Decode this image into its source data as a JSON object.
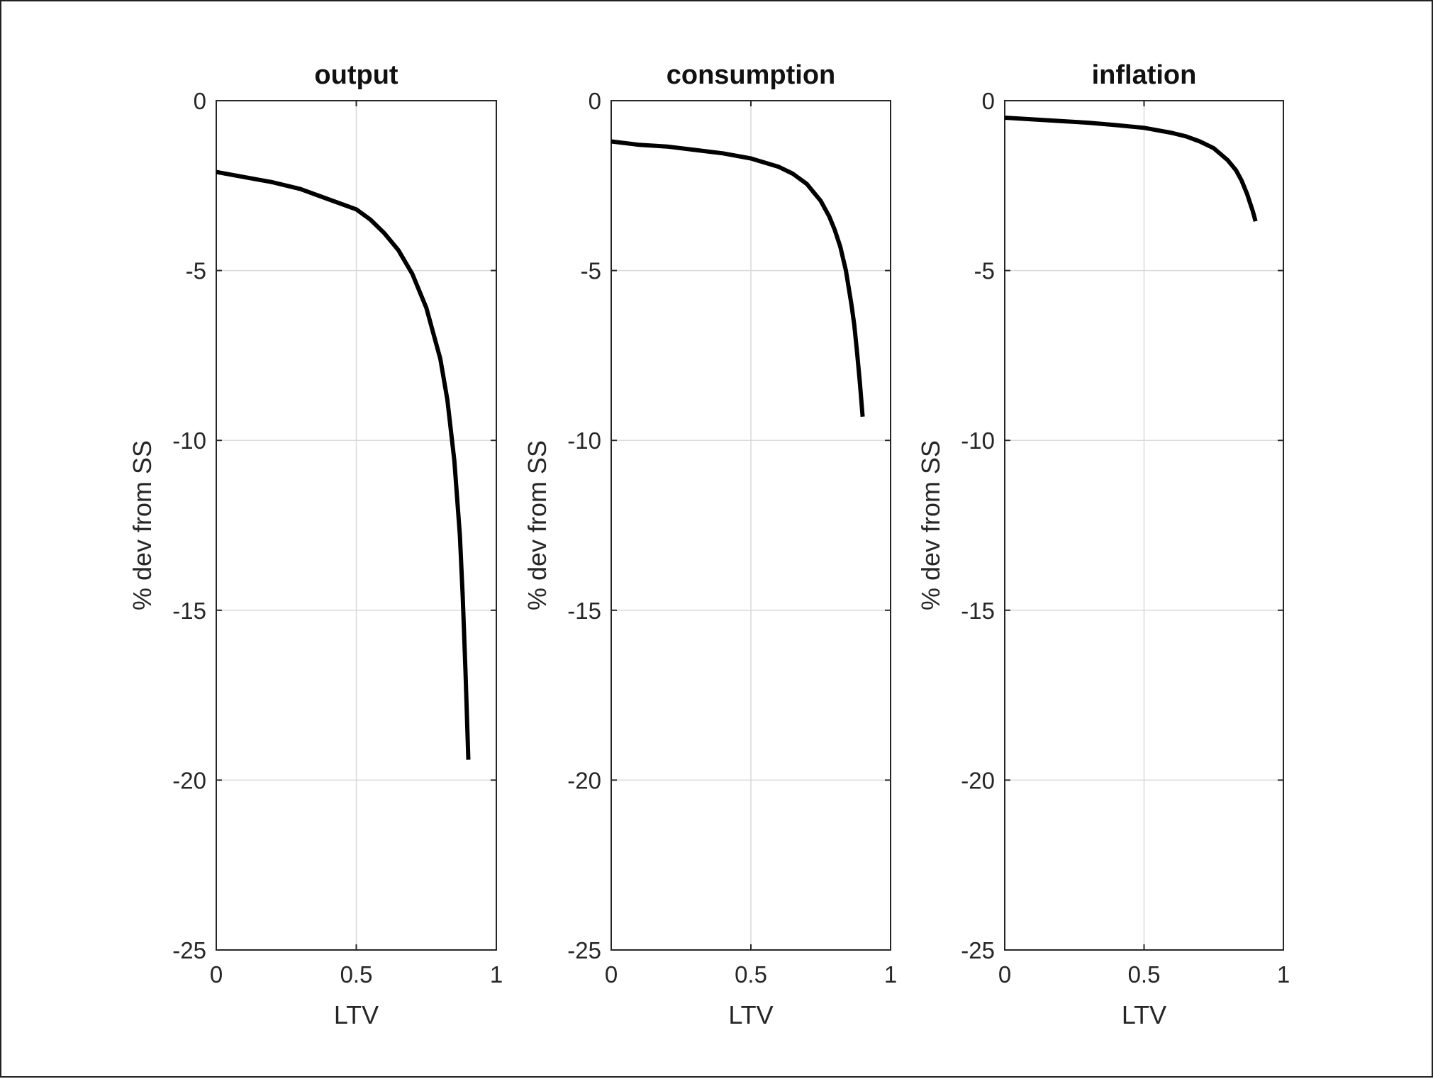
{
  "chart_data": [
    {
      "type": "line",
      "title": "output",
      "xlabel": "LTV",
      "ylabel": "% dev from SS",
      "xlim": [
        0,
        1
      ],
      "ylim": [
        -25,
        0
      ],
      "xticks": [
        0,
        0.5,
        1
      ],
      "xtick_labels": [
        "0",
        "0.5",
        "1"
      ],
      "yticks": [
        0,
        -5,
        -10,
        -15,
        -20,
        -25
      ],
      "ytick_labels": [
        "0",
        "-5",
        "-10",
        "-15",
        "-20",
        "-25"
      ],
      "grid": true,
      "series": [
        {
          "name": "output",
          "color": "#000000",
          "x": [
            0,
            0.1,
            0.2,
            0.3,
            0.4,
            0.5,
            0.55,
            0.6,
            0.65,
            0.7,
            0.75,
            0.8,
            0.825,
            0.85,
            0.87,
            0.88,
            0.89,
            0.9
          ],
          "y": [
            -2.1,
            -2.25,
            -2.4,
            -2.6,
            -2.9,
            -3.2,
            -3.5,
            -3.9,
            -4.4,
            -5.1,
            -6.1,
            -7.6,
            -8.8,
            -10.6,
            -12.8,
            -14.6,
            -16.8,
            -19.4
          ]
        }
      ]
    },
    {
      "type": "line",
      "title": "consumption",
      "xlabel": "LTV",
      "ylabel": "% dev from SS",
      "xlim": [
        0,
        1
      ],
      "ylim": [
        -25,
        0
      ],
      "xticks": [
        0,
        0.5,
        1
      ],
      "xtick_labels": [
        "0",
        "0.5",
        "1"
      ],
      "yticks": [
        0,
        -5,
        -10,
        -15,
        -20,
        -25
      ],
      "ytick_labels": [
        "0",
        "-5",
        "-10",
        "-15",
        "-20",
        "-25"
      ],
      "grid": true,
      "series": [
        {
          "name": "consumption",
          "color": "#000000",
          "x": [
            0,
            0.1,
            0.2,
            0.3,
            0.4,
            0.5,
            0.6,
            0.65,
            0.7,
            0.75,
            0.78,
            0.8,
            0.82,
            0.84,
            0.86,
            0.87,
            0.88,
            0.89,
            0.9
          ],
          "y": [
            -1.2,
            -1.3,
            -1.35,
            -1.45,
            -1.55,
            -1.7,
            -1.95,
            -2.15,
            -2.45,
            -2.95,
            -3.4,
            -3.8,
            -4.3,
            -5.0,
            -6.0,
            -6.6,
            -7.4,
            -8.3,
            -9.3
          ]
        }
      ]
    },
    {
      "type": "line",
      "title": "inflation",
      "xlabel": "LTV",
      "ylabel": "% dev from SS",
      "xlim": [
        0,
        1
      ],
      "ylim": [
        -25,
        0
      ],
      "xticks": [
        0,
        0.5,
        1
      ],
      "xtick_labels": [
        "0",
        "0.5",
        "1"
      ],
      "yticks": [
        0,
        -5,
        -10,
        -15,
        -20,
        -25
      ],
      "ytick_labels": [
        "0",
        "-5",
        "-10",
        "-15",
        "-20",
        "-25"
      ],
      "grid": true,
      "series": [
        {
          "name": "inflation",
          "color": "#000000",
          "x": [
            0,
            0.1,
            0.2,
            0.3,
            0.4,
            0.5,
            0.6,
            0.65,
            0.7,
            0.75,
            0.8,
            0.83,
            0.85,
            0.87,
            0.88,
            0.89,
            0.9
          ],
          "y": [
            -0.5,
            -0.55,
            -0.6,
            -0.65,
            -0.72,
            -0.8,
            -0.95,
            -1.05,
            -1.2,
            -1.4,
            -1.75,
            -2.05,
            -2.35,
            -2.75,
            -3.0,
            -3.25,
            -3.55
          ]
        }
      ]
    }
  ],
  "colors": {
    "line": "#000000",
    "grid": "#d9d9d9",
    "axes": "#262626",
    "background": "#ffffff"
  }
}
